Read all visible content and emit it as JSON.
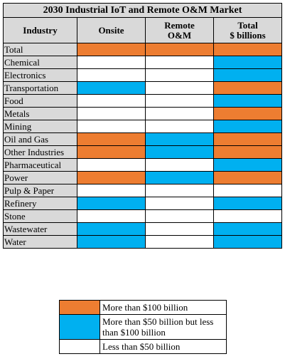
{
  "table": {
    "title": "2030 Industrial IoT and Remote O&M Market",
    "headers": [
      "Industry",
      "Onsite",
      "Remote\nO&M",
      "Total\n$ billions"
    ],
    "rows": [
      {
        "industry": "Total",
        "cells": [
          "#ED7D31",
          "#ED7D31",
          "#ED7D31"
        ]
      },
      {
        "industry": "Chemical",
        "cells": [
          "#FFFFFF",
          "#FFFFFF",
          "#00B0F0"
        ]
      },
      {
        "industry": "Electronics",
        "cells": [
          "#FFFFFF",
          "#FFFFFF",
          "#00B0F0"
        ]
      },
      {
        "industry": "Transportation",
        "cells": [
          "#00B0F0",
          "#FFFFFF",
          "#ED7D31"
        ]
      },
      {
        "industry": "Food",
        "cells": [
          "#FFFFFF",
          "#FFFFFF",
          "#00B0F0"
        ]
      },
      {
        "industry": "Metals",
        "cells": [
          "#FFFFFF",
          "#FFFFFF",
          "#ED7D31"
        ]
      },
      {
        "industry": "Mining",
        "cells": [
          "#FFFFFF",
          "#FFFFFF",
          "#00B0F0"
        ]
      },
      {
        "industry": "Oil and Gas",
        "cells": [
          "#ED7D31",
          "#00B0F0",
          "#ED7D31"
        ]
      },
      {
        "industry": "Other Industries",
        "cells": [
          "#ED7D31",
          "#00B0F0",
          "#ED7D31"
        ]
      },
      {
        "industry": "Pharmaceutical",
        "cells": [
          "#FFFFFF",
          "#FFFFFF",
          "#00B0F0"
        ]
      },
      {
        "industry": "Power",
        "cells": [
          "#ED7D31",
          "#00B0F0",
          "#ED7D31"
        ]
      },
      {
        "industry": "Pulp & Paper",
        "cells": [
          "#FFFFFF",
          "#FFFFFF",
          "#FFFFFF"
        ]
      },
      {
        "industry": "Refinery",
        "cells": [
          "#00B0F0",
          "#FFFFFF",
          "#00B0F0"
        ]
      },
      {
        "industry": "Stone",
        "cells": [
          "#FFFFFF",
          "#FFFFFF",
          "#FFFFFF"
        ]
      },
      {
        "industry": "Wastewater",
        "cells": [
          "#00B0F0",
          "#FFFFFF",
          "#00B0F0"
        ]
      },
      {
        "industry": "Water",
        "cells": [
          "#00B0F0",
          "#FFFFFF",
          "#00B0F0"
        ]
      }
    ]
  },
  "legend": [
    {
      "color": "#ED7D31",
      "label": "More than $100 billion"
    },
    {
      "color": "#00B0F0",
      "label": "More than $50 billion but less than $100 billion"
    },
    {
      "color": "#FFFFFF",
      "label": "Less than $50 billion"
    }
  ]
}
